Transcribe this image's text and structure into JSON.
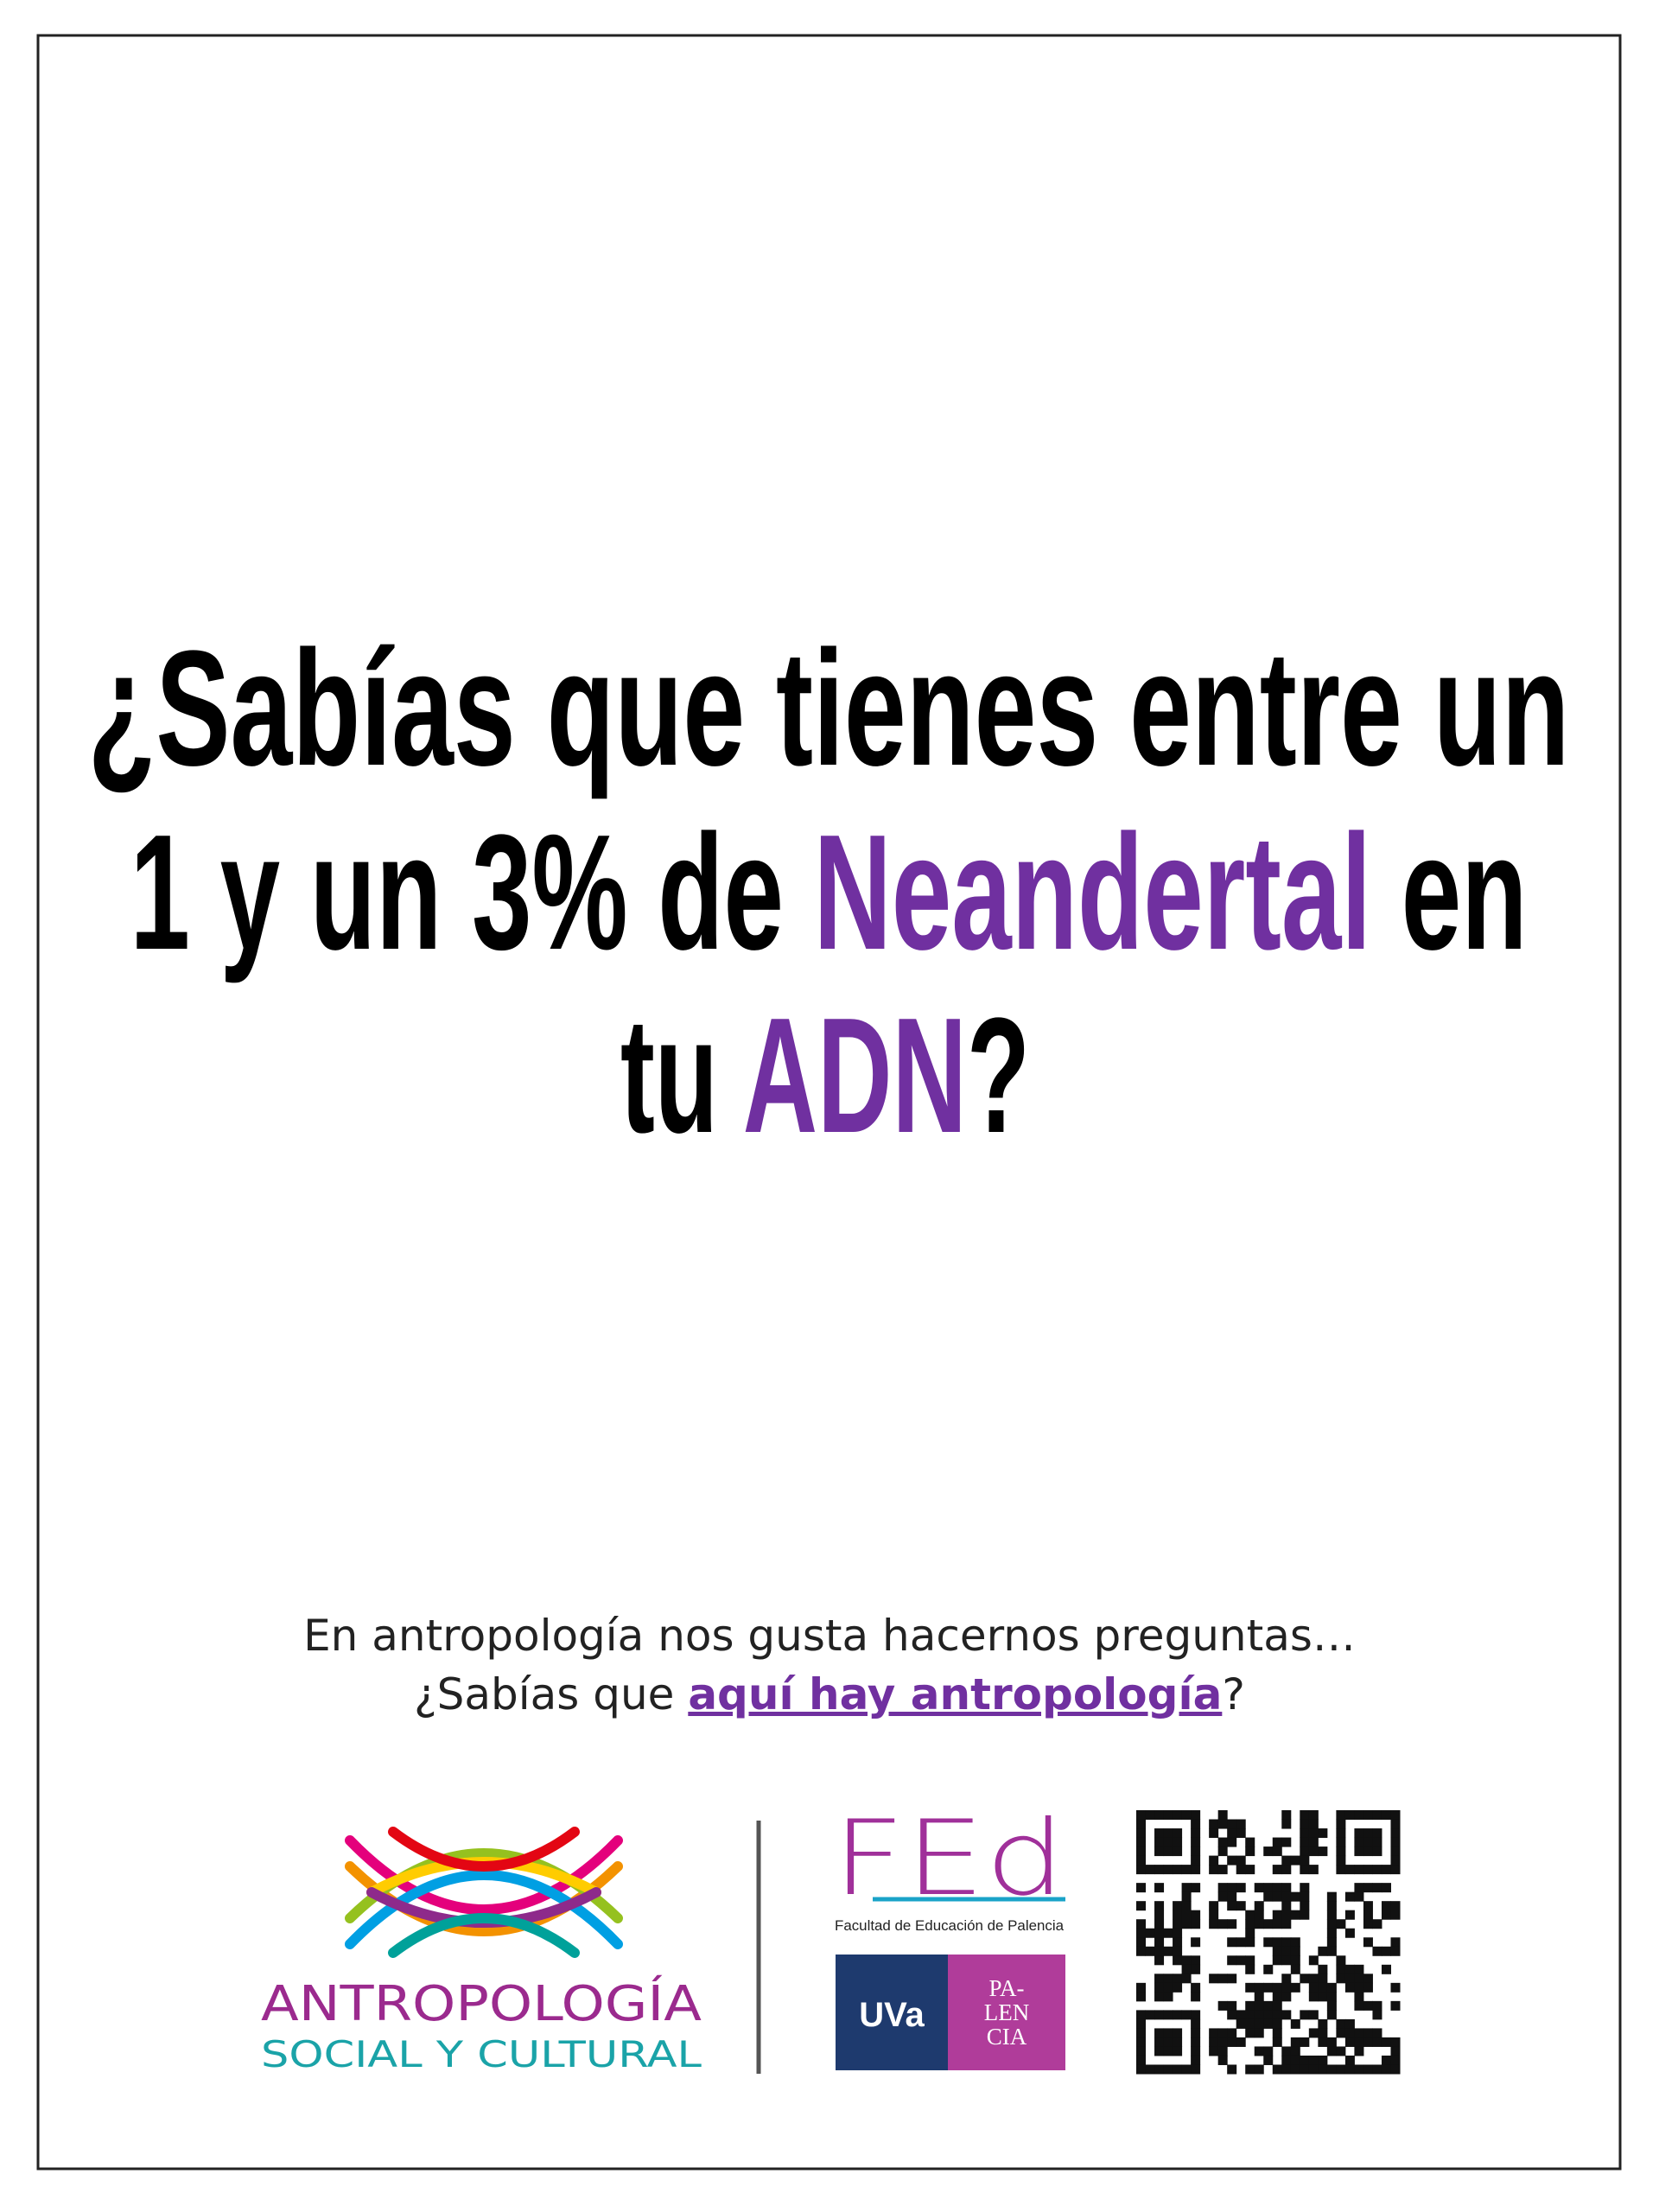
{
  "headline": {
    "lines": [
      [
        {
          "text": "¿Sabías que tienes entre un"
        }
      ],
      [
        {
          "text": "1 y un 3% de "
        },
        {
          "text": "Neandertal",
          "highlight": true
        },
        {
          "text": " en"
        }
      ],
      [
        {
          "text": "tu "
        },
        {
          "text": "ADN",
          "highlight": true
        },
        {
          "text": "?"
        }
      ]
    ]
  },
  "subtitle": {
    "line1": "En antropología nos gusta hacernos preguntas…",
    "line2_before": "¿Sabías que ",
    "link": "aquí hay antropología",
    "line2_after": "?"
  },
  "logos": {
    "antropologia": {
      "line1": "ANTROPOLOGÍA",
      "line2": "SOCIAL Y CULTURAL"
    },
    "fed": {
      "mark": "FEd",
      "caption": "Facultad de Educación de Palencia"
    },
    "uva": {
      "left": "UVa",
      "right": [
        "PA-",
        "LEN",
        "CIA"
      ]
    }
  }
}
